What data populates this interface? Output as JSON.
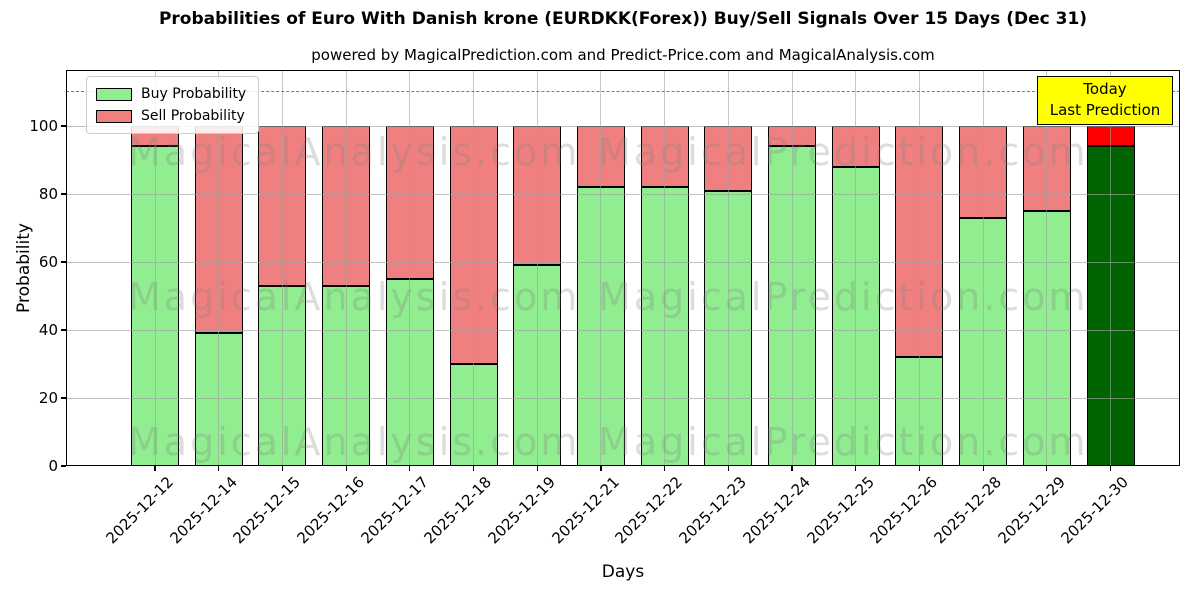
{
  "page": {
    "title": "Probabilities of Euro With Danish krone (EURDKK(Forex)) Buy/Sell Signals Over 15 Days (Dec 31)",
    "subtitle": "powered by MagicalPrediction.com and Predict-Price.com and MagicalAnalysis.com"
  },
  "annotation": {
    "line1": "Today",
    "line2": "Last Prediction",
    "bg_color": "#ffff00"
  },
  "watermarks": {
    "left_text": "MagicalAnalysis.com",
    "right_text": "MagicalPrediction.com"
  },
  "chart_data": {
    "type": "bar",
    "stacked": true,
    "categories": [
      "2025-12-12",
      "2025-12-14",
      "2025-12-15",
      "2025-12-16",
      "2025-12-17",
      "2025-12-18",
      "2025-12-19",
      "2025-12-21",
      "2025-12-22",
      "2025-12-23",
      "2025-12-24",
      "2025-12-25",
      "2025-12-26",
      "2025-12-28",
      "2025-12-29",
      "2025-12-30"
    ],
    "series": [
      {
        "name": "Buy Probability",
        "color": "#90ee90",
        "values": [
          94,
          39,
          53,
          53,
          55,
          30,
          59,
          82,
          82,
          81,
          94,
          88,
          32,
          73,
          75,
          94
        ]
      },
      {
        "name": "Sell Probability",
        "color": "#f08080",
        "values": [
          6,
          61,
          47,
          47,
          45,
          70,
          41,
          18,
          18,
          19,
          6,
          12,
          68,
          27,
          25,
          6
        ]
      }
    ],
    "last_bar_colors": {
      "buy": "#006400",
      "sell": "#ff0000"
    },
    "xlabel": "Days",
    "ylabel": "Probability",
    "yticks": [
      0,
      20,
      40,
      60,
      80,
      100
    ],
    "ylim": [
      0,
      116
    ],
    "reference_line": {
      "value": 110,
      "style": "dashed",
      "color": "#808080"
    },
    "grid": true,
    "legend_position": "upper-left"
  }
}
